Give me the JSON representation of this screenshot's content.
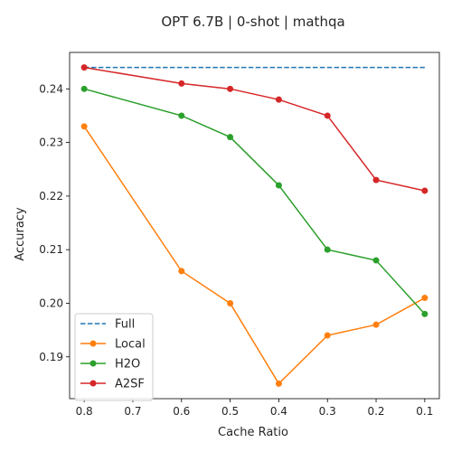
{
  "chart_data": {
    "type": "line",
    "title": "OPT 6.7B | 0-shot | mathqa",
    "xlabel": "Cache Ratio",
    "ylabel": "Accuracy",
    "x": [
      0.8,
      0.6,
      0.5,
      0.4,
      0.3,
      0.2,
      0.1
    ],
    "x_ticks": [
      0.8,
      0.7,
      0.6,
      0.5,
      0.4,
      0.3,
      0.2,
      0.1
    ],
    "x_tick_labels": [
      "0.8",
      "0.7",
      "0.6",
      "0.5",
      "0.4",
      "0.3",
      "0.2",
      "0.1"
    ],
    "x_axis_inverted": true,
    "xlim": [
      0.83,
      0.07
    ],
    "y_ticks": [
      0.19,
      0.2,
      0.21,
      0.22,
      0.23,
      0.24
    ],
    "y_tick_labels": [
      "0.19",
      "0.20",
      "0.21",
      "0.22",
      "0.23",
      "0.24"
    ],
    "ylim": [
      0.1822,
      0.2468
    ],
    "grid": false,
    "legend_position": "lower-left",
    "series": [
      {
        "name": "Full",
        "style": "dashed",
        "markers": false,
        "color": "#1f77b4",
        "values": [
          0.244,
          0.244,
          0.244,
          0.244,
          0.244,
          0.244,
          0.244
        ]
      },
      {
        "name": "Local",
        "style": "solid",
        "markers": true,
        "color": "#ff7f0e",
        "values": [
          0.233,
          0.206,
          0.2,
          0.185,
          0.194,
          0.196,
          0.201
        ]
      },
      {
        "name": "H2O",
        "style": "solid",
        "markers": true,
        "color": "#2ca02c",
        "values": [
          0.24,
          0.235,
          0.231,
          0.222,
          0.21,
          0.208,
          0.198
        ]
      },
      {
        "name": "A2SF",
        "style": "solid",
        "markers": true,
        "color": "#d62728",
        "values": [
          0.244,
          0.241,
          0.24,
          0.238,
          0.235,
          0.223,
          0.221
        ]
      }
    ]
  }
}
